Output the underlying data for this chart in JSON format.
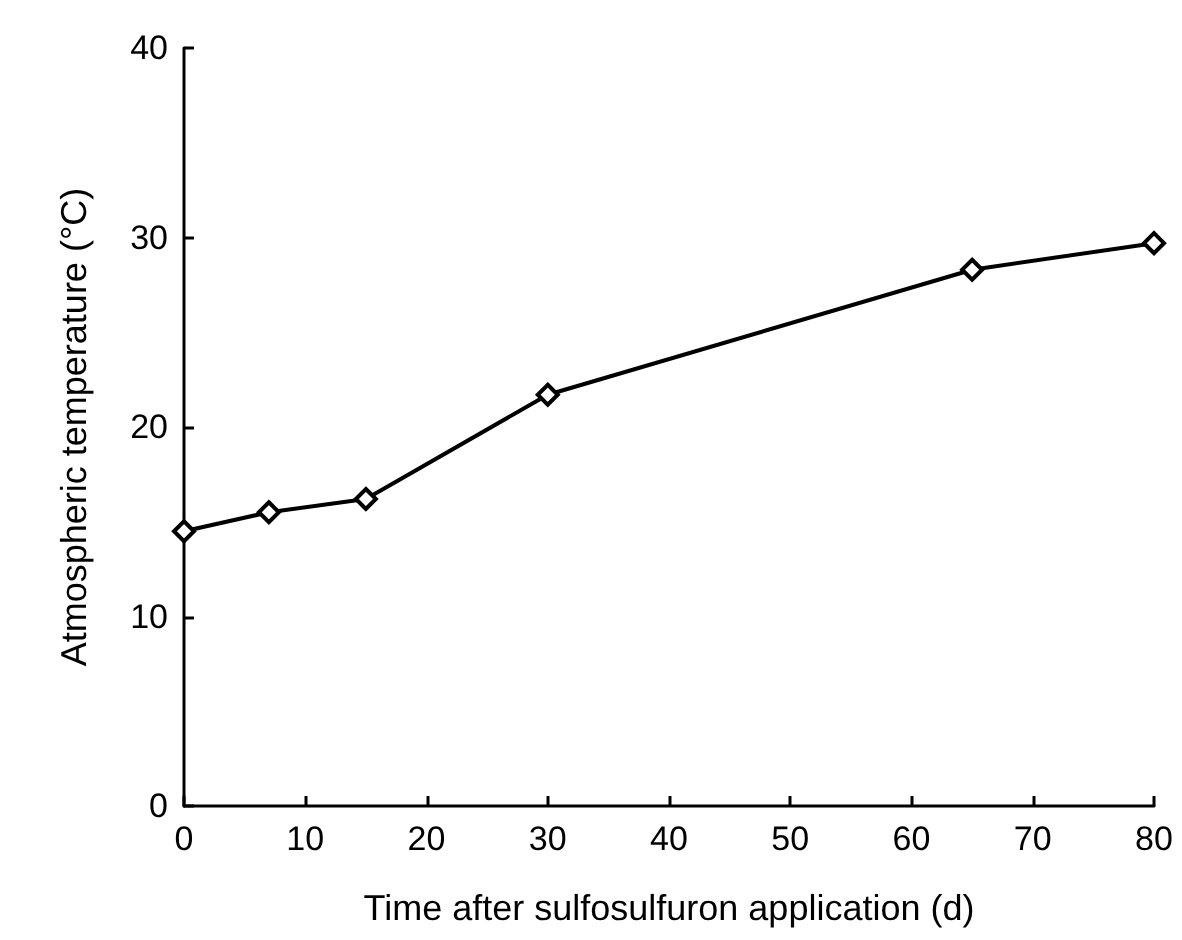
{
  "chart_data": {
    "type": "line",
    "xlabel": "Time after sulfosulfuron application (d)",
    "ylabel": "Atmospheric temperature (°C)",
    "x": [
      0,
      7,
      15,
      30,
      65,
      80
    ],
    "series": [
      {
        "color": "#000000",
        "values": [
          14.5,
          15.5,
          16.2,
          21.7,
          28.3,
          29.7
        ]
      }
    ],
    "xlim": [
      0,
      80
    ],
    "xticks": [
      0,
      10,
      20,
      30,
      40,
      50,
      60,
      70,
      80
    ],
    "ylim": [
      0,
      40
    ],
    "yticks": [
      0,
      10,
      20,
      30,
      40
    ],
    "grid": false,
    "marker": "diamond",
    "line_style": "solid"
  }
}
